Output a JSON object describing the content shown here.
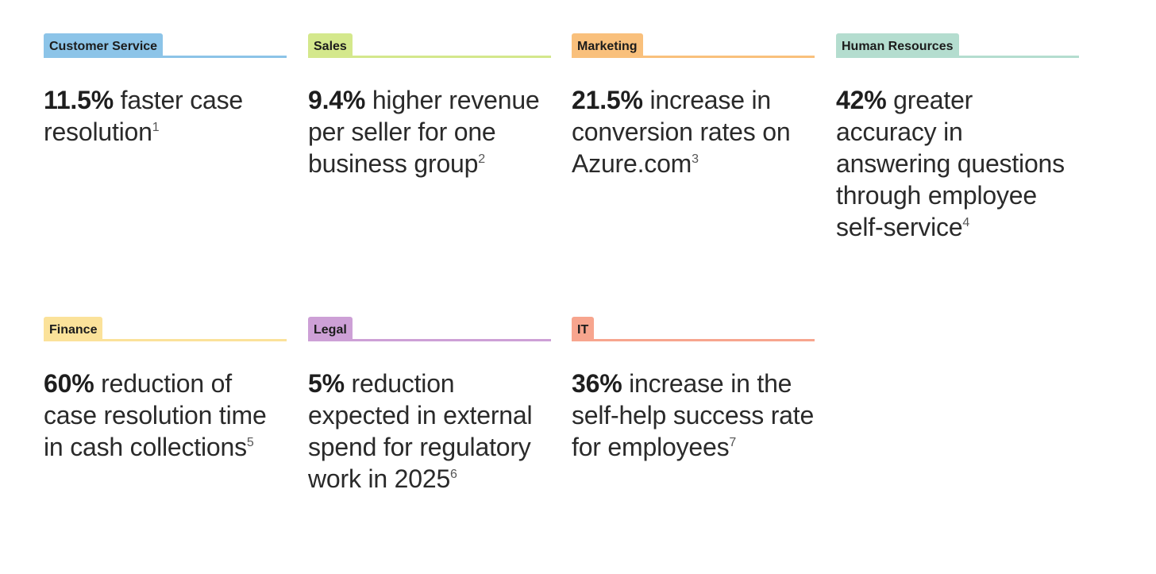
{
  "cards": [
    {
      "tag": "Customer Service",
      "number": "11.5%",
      "text": " faster case resolution",
      "footnote": "1",
      "color": "#8CC4E8"
    },
    {
      "tag": "Sales",
      "number": "9.4%",
      "text": " higher revenue per seller for one business group",
      "footnote": "2",
      "color": "#D4E88C"
    },
    {
      "tag": "Marketing",
      "number": "21.5%",
      "text": " increase in conversion rates on Azure.com",
      "footnote": "3",
      "color": "#F9C07C"
    },
    {
      "tag": "Human Resources",
      "number": "42%",
      "text": " greater accuracy in answering questions through employee self-service",
      "footnote": "4",
      "color": "#B4DDCF"
    },
    {
      "tag": "Finance",
      "number": "60%",
      "text": " reduction of case resolution time in cash collections",
      "footnote": "5",
      "color": "#FBE29A"
    },
    {
      "tag": "Legal",
      "number": "5%",
      "text": " reduction expected in external spend for regulatory work in 2025",
      "footnote": "6",
      "color": "#CDA0D6"
    },
    {
      "tag": "IT",
      "number": "36%",
      "text": " increase in the self-help success rate for employees",
      "footnote": "7",
      "color": "#F7A58E"
    }
  ]
}
